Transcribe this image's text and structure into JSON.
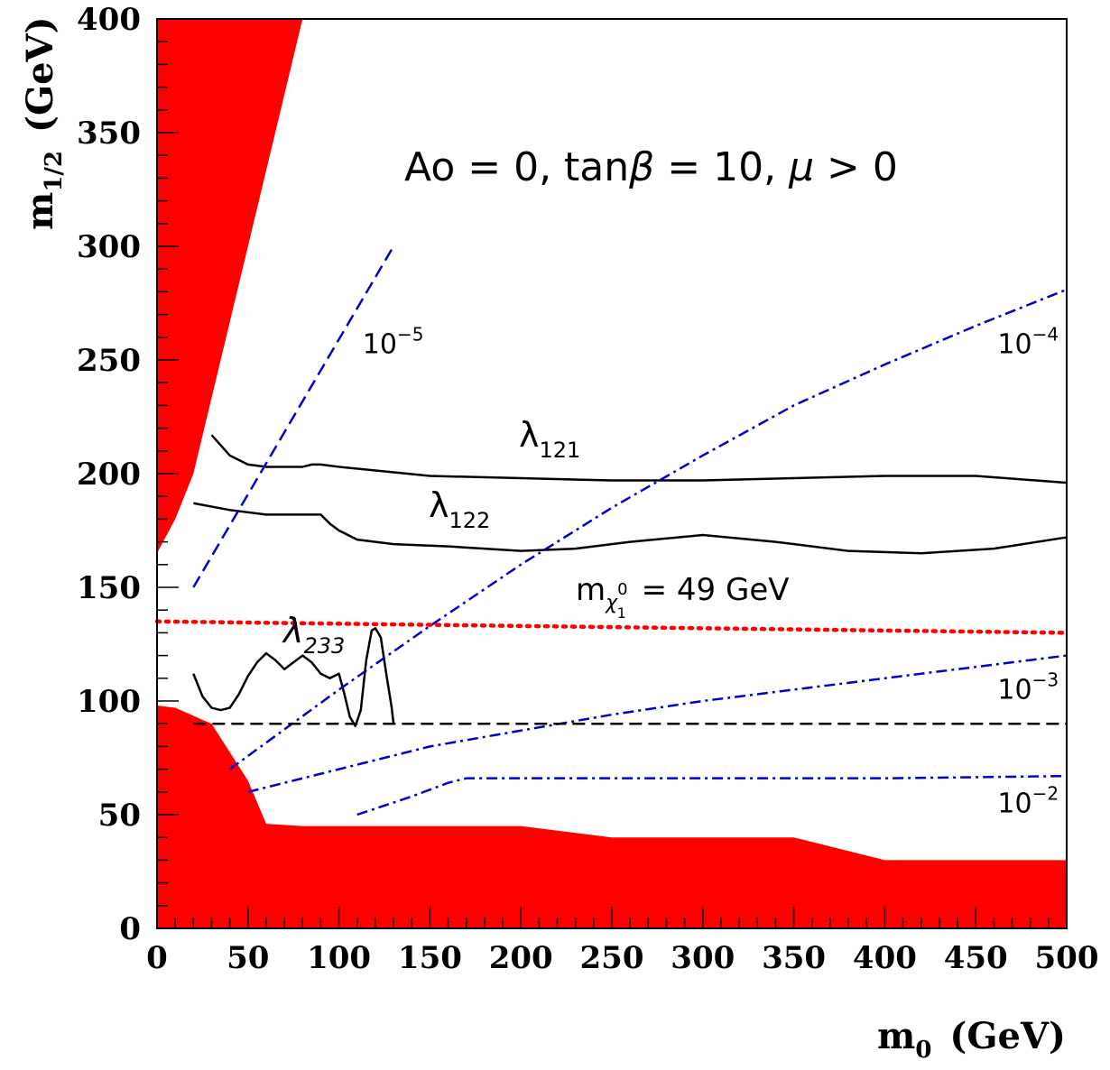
{
  "chart_data": {
    "type": "line",
    "title": "Ao = 0, tanβ = 10, μ > 0",
    "title_parts": {
      "a0": "Ao = 0, tan",
      "beta": "β",
      "mid": " = 10, ",
      "mu": "μ",
      "end": " > 0"
    },
    "xlabel": {
      "main": "m",
      "sub": "0",
      "unit": "(GeV)"
    },
    "ylabel": {
      "main": "m",
      "sub": "1/2",
      "unit": "(GeV)"
    },
    "xlim": [
      0,
      500
    ],
    "ylim": [
      0,
      400
    ],
    "xticks": [
      0,
      50,
      100,
      150,
      200,
      250,
      300,
      350,
      400,
      450,
      500
    ],
    "yticks": [
      0,
      50,
      100,
      150,
      200,
      250,
      300,
      350,
      400
    ],
    "excluded_regions": [
      {
        "name": "excluded-upper-left",
        "color": "#ff0000",
        "x": [
          0,
          0,
          80,
          20,
          10,
          0
        ],
        "y": [
          165,
          400,
          400,
          200,
          180,
          165
        ]
      },
      {
        "name": "excluded-bottom",
        "color": "#ff0000",
        "x": [
          0,
          0,
          10,
          30,
          50,
          60,
          80,
          200,
          250,
          350,
          400,
          500,
          500
        ],
        "y": [
          0,
          98,
          97,
          90,
          65,
          46,
          45,
          45,
          40,
          40,
          30,
          30,
          0
        ]
      }
    ],
    "series": [
      {
        "name": "λ121",
        "label_main": "λ",
        "label_sub": "121",
        "style": "solid",
        "color": "#000000",
        "x": [
          30,
          40,
          50,
          60,
          70,
          80,
          85,
          90,
          100,
          150,
          200,
          250,
          300,
          350,
          400,
          450,
          500
        ],
        "y": [
          217,
          208,
          204,
          203,
          203,
          203,
          204,
          204,
          203,
          199,
          198,
          197,
          197,
          198,
          199,
          199,
          196
        ]
      },
      {
        "name": "λ122",
        "label_main": "λ",
        "label_sub": "122",
        "style": "solid",
        "color": "#000000",
        "x": [
          20,
          40,
          60,
          80,
          90,
          95,
          100,
          110,
          130,
          160,
          200,
          230,
          260,
          300,
          340,
          380,
          420,
          460,
          500
        ],
        "y": [
          187,
          184,
          182,
          182,
          182,
          178,
          175,
          171,
          169,
          168,
          166,
          167,
          170,
          173,
          170,
          166,
          165,
          167,
          172
        ]
      },
      {
        "name": "λ233",
        "label_main": "λ",
        "label_sub": "233",
        "style": "solid",
        "color": "#000000",
        "x": [
          20,
          25,
          30,
          35,
          40,
          45,
          50,
          55,
          60,
          65,
          70,
          75,
          80,
          85,
          90,
          95,
          100,
          103,
          106,
          109,
          112,
          115,
          118,
          120,
          123,
          126,
          129,
          130
        ],
        "y": [
          112,
          102,
          97,
          96,
          97,
          103,
          111,
          117,
          121,
          118,
          114,
          117,
          120,
          117,
          112,
          110,
          112,
          103,
          93,
          89,
          96,
          118,
          131,
          132,
          128,
          112,
          97,
          90
        ]
      },
      {
        "name": "10^-5",
        "style": "dashed",
        "color": "#0000cc",
        "x": [
          20,
          130
        ],
        "y": [
          150,
          300
        ]
      },
      {
        "name": "10^-4",
        "style": "dashdot",
        "color": "#0000cc",
        "x": [
          40,
          100,
          150,
          200,
          250,
          300,
          350,
          400,
          450,
          500
        ],
        "y": [
          70,
          105,
          133,
          160,
          185,
          208,
          230,
          248,
          265,
          281
        ]
      },
      {
        "name": "10^-3",
        "style": "dashdot",
        "color": "#0000cc",
        "x": [
          50,
          100,
          150,
          200,
          250,
          300,
          350,
          400,
          450,
          500
        ],
        "y": [
          60,
          70,
          80,
          87,
          94,
          100,
          105,
          110,
          115,
          120
        ]
      },
      {
        "name": "10^-2",
        "style": "dashdot",
        "color": "#0000cc",
        "x": [
          110,
          140,
          160,
          170,
          200,
          300,
          400,
          500
        ],
        "y": [
          50,
          58,
          64,
          66,
          66,
          66,
          66,
          67
        ]
      },
      {
        "name": "m_chi = 49 GeV",
        "style": "dotted",
        "color": "#ff0000",
        "x": [
          0,
          500
        ],
        "y": [
          135,
          130
        ]
      },
      {
        "name": "lep-higgs-limit",
        "style": "dashed",
        "color": "#000000",
        "x": [
          20,
          500
        ],
        "y": [
          90,
          90
        ]
      }
    ],
    "annotations": {
      "contour_labels": [
        {
          "name": "label-1e-5",
          "base": "10",
          "exp": "−5",
          "x": 113,
          "y": 253
        },
        {
          "name": "label-1e-4",
          "base": "10",
          "exp": "−4",
          "x": 462,
          "y": 253
        },
        {
          "name": "label-1e-3",
          "base": "10",
          "exp": "−3",
          "x": 462,
          "y": 101
        },
        {
          "name": "label-1e-2",
          "base": "10",
          "exp": "−2",
          "x": 462,
          "y": 51
        }
      ],
      "mass_label": {
        "main": "m",
        "chi": "χ",
        "sup": "0",
        "sub": "1",
        "rest": " = 49 GeV"
      }
    }
  }
}
